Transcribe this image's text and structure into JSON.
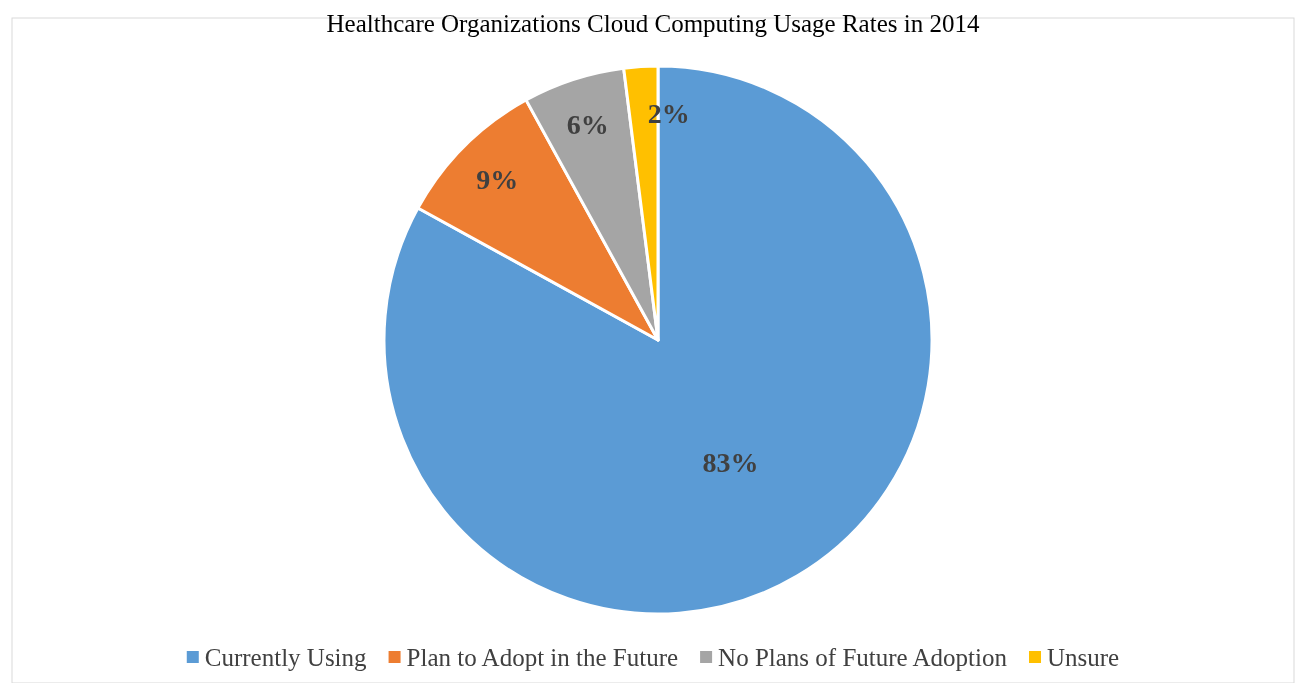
{
  "chart_data": {
    "type": "pie",
    "title": "Healthcare Organizations Cloud Computing Usage Rates in 2014",
    "categories": [
      "Currently Using",
      "Plan to Adopt in the Future",
      "No Plans of Future Adoption",
      "Unsure"
    ],
    "values": [
      83,
      9,
      6,
      2
    ],
    "colors": [
      "#5b9bd5",
      "#ed7d31",
      "#a5a5a5",
      "#ffc000"
    ],
    "value_labels": [
      "83%",
      "9%",
      "6%",
      "2%"
    ],
    "legend": "bottom"
  }
}
